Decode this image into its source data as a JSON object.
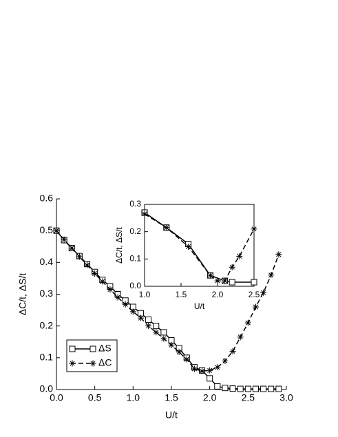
{
  "chart_data": [
    {
      "type": "line",
      "xlabel": "U/t",
      "ylabel": "ΔC/t, ΔS/t",
      "xlim": [
        0,
        3
      ],
      "ylim": [
        0,
        0.6
      ],
      "xticks": [
        {
          "value": 0,
          "label": "0.0"
        },
        0.5,
        {
          "value": 1,
          "label": "1.0"
        },
        1.5,
        {
          "value": 2,
          "label": "2.0"
        },
        2.5,
        {
          "value": 3,
          "label": "3.0"
        }
      ],
      "yticks": [
        {
          "value": 0,
          "label": "0.0"
        },
        0.1,
        0.2,
        0.3,
        0.4,
        0.5,
        0.6
      ],
      "legend": "lower left",
      "frame": false,
      "series": [
        {
          "name": "ΔS",
          "color": "#000000",
          "line_style": "solid",
          "marker": "square",
          "x": [
            0,
            0.1,
            0.2,
            0.3,
            0.4,
            0.5,
            0.6,
            0.7,
            0.8,
            0.9,
            1.0,
            1.1,
            1.2,
            1.3,
            1.4,
            1.5,
            1.6,
            1.7,
            1.8,
            1.9,
            2.0,
            2.1,
            2.2,
            2.3,
            2.4,
            2.5,
            2.6,
            2.7,
            2.8,
            2.9
          ],
          "values": [
            0.5,
            0.47,
            0.445,
            0.42,
            0.395,
            0.37,
            0.345,
            0.325,
            0.3,
            0.28,
            0.26,
            0.24,
            0.22,
            0.2,
            0.18,
            0.155,
            0.13,
            0.1,
            0.07,
            0.06,
            0.035,
            0.01,
            0.005,
            0.003,
            0.002,
            0.002,
            0.002,
            0.002,
            0.002,
            0.002
          ]
        },
        {
          "name": "ΔC",
          "color": "#000000",
          "line_style": "dashed",
          "marker": "star",
          "x": [
            0,
            0.1,
            0.2,
            0.3,
            0.4,
            0.5,
            0.6,
            0.7,
            0.8,
            0.9,
            1.0,
            1.1,
            1.2,
            1.3,
            1.4,
            1.5,
            1.6,
            1.7,
            1.8,
            1.9,
            2.0,
            2.1,
            2.2,
            2.3,
            2.4,
            2.5,
            2.6,
            2.7,
            2.8,
            2.9
          ],
          "values": [
            0.5,
            0.472,
            0.445,
            0.418,
            0.392,
            0.365,
            0.34,
            0.315,
            0.29,
            0.268,
            0.245,
            0.225,
            0.2,
            0.18,
            0.16,
            0.14,
            0.118,
            0.095,
            0.065,
            0.058,
            0.06,
            0.07,
            0.09,
            0.12,
            0.165,
            0.21,
            0.26,
            0.305,
            0.36,
            0.425
          ]
        }
      ]
    },
    {
      "type": "line",
      "xlabel": "U/t",
      "ylabel": "ΔC/t, ΔS/t",
      "xlim": [
        1,
        2.5
      ],
      "ylim": [
        0,
        0.3
      ],
      "xticks": [
        {
          "value": 1,
          "label": "1.0"
        },
        1.5,
        {
          "value": 2,
          "label": "2.0"
        },
        2.5
      ],
      "yticks": [
        {
          "value": 0,
          "label": "0.0"
        },
        0.1,
        0.2,
        0.3
      ],
      "frame": true,
      "series": [
        {
          "color": "#000000",
          "line_style": "solid",
          "marker": "square",
          "x": [
            1.0,
            1.3,
            1.6,
            1.9,
            2.1,
            2.2,
            2.5
          ],
          "values": [
            0.27,
            0.215,
            0.155,
            0.04,
            0.02,
            0.015,
            0.015
          ]
        },
        {
          "color": "#000000",
          "line_style": "dashed",
          "marker": "star",
          "x": [
            1.0,
            1.3,
            1.6,
            1.9,
            2.0,
            2.1,
            2.2,
            2.3,
            2.5
          ],
          "values": [
            0.265,
            0.215,
            0.145,
            0.04,
            0.02,
            0.02,
            0.07,
            0.11,
            0.21
          ]
        }
      ]
    }
  ]
}
